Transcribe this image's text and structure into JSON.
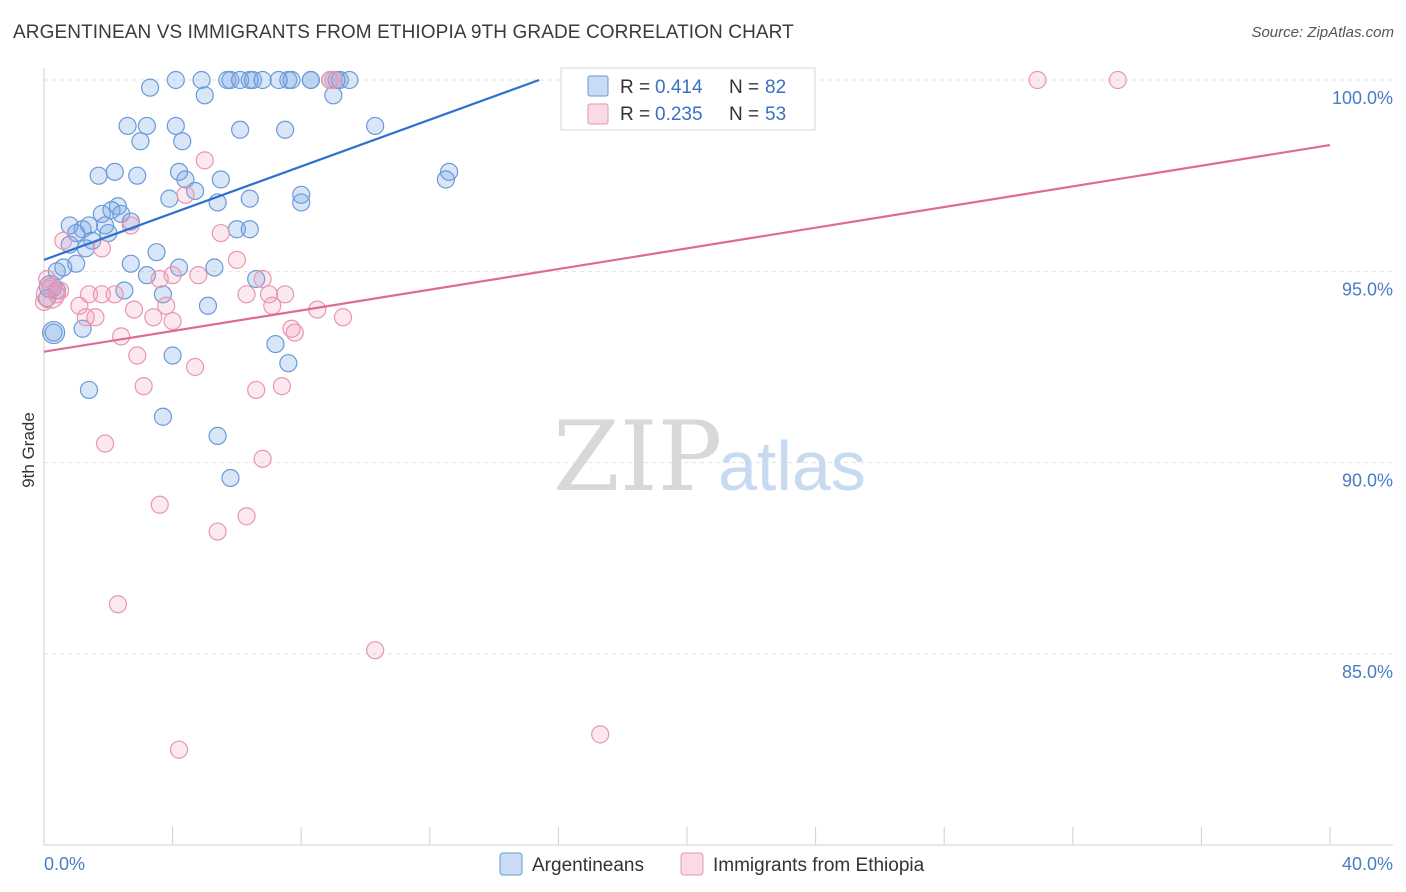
{
  "title": "ARGENTINEAN VS IMMIGRANTS FROM ETHIOPIA 9TH GRADE CORRELATION CHART",
  "source": "Source: ZipAtlas.com",
  "watermark": {
    "zip": "ZIP",
    "atlas": "atlas"
  },
  "colors": {
    "blue_fill": "rgba(120,165,230,0.28)",
    "blue_stroke": "#6a9ad8",
    "blue_line": "#2f6fcf",
    "pink_fill": "rgba(240,150,180,0.22)",
    "pink_stroke": "#e896b2",
    "pink_line": "#e06a96",
    "grid": "#e3e3e3",
    "tick": "#4a7cc4"
  },
  "legend": {
    "rows": [
      {
        "r_label": "R =",
        "r_value": "0.414",
        "n_label": "N =",
        "n_value": "82"
      },
      {
        "r_label": "R =",
        "r_value": "0.235",
        "n_label": "N =",
        "n_value": "53"
      }
    ]
  },
  "chart_data": {
    "type": "scatter",
    "title": "ARGENTINEAN VS IMMIGRANTS FROM ETHIOPIA 9TH GRADE CORRELATION CHART",
    "xlabel": "",
    "ylabel": "9th Grade",
    "xlim": [
      0,
      40
    ],
    "ylim": [
      80.5,
      100.5
    ],
    "x_tick_labels": [
      "0.0%",
      "40.0%"
    ],
    "y_ticks": [
      100,
      95,
      90,
      85
    ],
    "y_tick_labels": [
      "100.0%",
      "95.0%",
      "90.0%",
      "85.0%"
    ],
    "grid": true,
    "legend_position": "top-center",
    "series": [
      {
        "name": "Argentineans",
        "color": "blue",
        "trend": {
          "x": [
            0,
            15.4
          ],
          "y": [
            95.3,
            100.0
          ]
        },
        "points": [
          [
            3.3,
            99.8
          ],
          [
            4.9,
            100
          ],
          [
            5.7,
            100
          ],
          [
            5.8,
            100
          ],
          [
            6.1,
            100
          ],
          [
            6.4,
            100
          ],
          [
            6.5,
            100
          ],
          [
            6.8,
            100
          ],
          [
            7.6,
            100
          ],
          [
            7.7,
            100
          ],
          [
            8.3,
            100
          ],
          [
            8.9,
            100
          ],
          [
            9.2,
            100
          ],
          [
            9.5,
            100
          ],
          [
            5.0,
            99.6
          ],
          [
            9.0,
            99.6
          ],
          [
            2.6,
            98.8
          ],
          [
            3.2,
            98.8
          ],
          [
            4.1,
            98.8
          ],
          [
            6.1,
            98.7
          ],
          [
            7.5,
            98.7
          ],
          [
            10.3,
            98.8
          ],
          [
            3.0,
            98.4
          ],
          [
            4.3,
            98.4
          ],
          [
            2.2,
            97.6
          ],
          [
            4.2,
            97.6
          ],
          [
            1.7,
            97.5
          ],
          [
            2.9,
            97.5
          ],
          [
            4.4,
            97.4
          ],
          [
            5.5,
            97.4
          ],
          [
            12.6,
            97.6
          ],
          [
            12.5,
            97.4
          ],
          [
            4.7,
            97.1
          ],
          [
            8.0,
            97.0
          ],
          [
            3.9,
            96.9
          ],
          [
            5.4,
            96.8
          ],
          [
            6.4,
            96.9
          ],
          [
            8.0,
            96.8
          ],
          [
            2.3,
            96.7
          ],
          [
            2.1,
            96.6
          ],
          [
            1.8,
            96.5
          ],
          [
            2.4,
            96.5
          ],
          [
            0.8,
            96.2
          ],
          [
            1.9,
            96.2
          ],
          [
            2.7,
            96.3
          ],
          [
            1.2,
            96.1
          ],
          [
            1.4,
            96.2
          ],
          [
            6.0,
            96.1
          ],
          [
            6.4,
            96.1
          ],
          [
            2.0,
            96.0
          ],
          [
            1.0,
            96.0
          ],
          [
            1.5,
            95.8
          ],
          [
            0.8,
            95.7
          ],
          [
            1.3,
            95.6
          ],
          [
            3.5,
            95.5
          ],
          [
            1.0,
            95.2
          ],
          [
            2.7,
            95.2
          ],
          [
            0.6,
            95.1
          ],
          [
            4.2,
            95.1
          ],
          [
            5.3,
            95.1
          ],
          [
            0.4,
            95.0
          ],
          [
            3.2,
            94.9
          ],
          [
            6.6,
            94.8
          ],
          [
            0.2,
            94.6
          ],
          [
            0.4,
            94.5
          ],
          [
            2.5,
            94.5
          ],
          [
            3.7,
            94.4
          ],
          [
            0.1,
            94.3
          ],
          [
            5.1,
            94.1
          ],
          [
            0.3,
            93.4
          ],
          [
            1.2,
            93.5
          ],
          [
            7.2,
            93.1
          ],
          [
            4.0,
            92.8
          ],
          [
            7.6,
            92.6
          ],
          [
            1.4,
            91.9
          ],
          [
            3.7,
            91.2
          ],
          [
            5.4,
            90.7
          ],
          [
            5.8,
            89.6
          ],
          [
            8.3,
            100
          ],
          [
            7.3,
            100
          ],
          [
            4.1,
            100
          ],
          [
            9.1,
            100
          ]
        ]
      },
      {
        "name": "Immigrants from Ethiopia",
        "color": "pink",
        "trend": {
          "x": [
            0,
            40
          ],
          "y": [
            92.9,
            98.3
          ]
        },
        "points": [
          [
            8.9,
            100
          ],
          [
            9.0,
            100
          ],
          [
            30.9,
            100
          ],
          [
            33.4,
            100
          ],
          [
            23.6,
            99.9
          ],
          [
            5.0,
            97.9
          ],
          [
            4.4,
            97.0
          ],
          [
            5.5,
            96.0
          ],
          [
            2.7,
            96.2
          ],
          [
            0.6,
            95.8
          ],
          [
            1.8,
            95.6
          ],
          [
            6.0,
            95.3
          ],
          [
            0.1,
            94.8
          ],
          [
            0.2,
            94.6
          ],
          [
            0.5,
            94.5
          ],
          [
            0.4,
            94.4
          ],
          [
            1.4,
            94.4
          ],
          [
            1.8,
            94.4
          ],
          [
            2.2,
            94.4
          ],
          [
            3.6,
            94.8
          ],
          [
            4.0,
            94.9
          ],
          [
            4.8,
            94.9
          ],
          [
            6.3,
            94.4
          ],
          [
            6.8,
            94.8
          ],
          [
            7.0,
            94.4
          ],
          [
            7.5,
            94.4
          ],
          [
            0.0,
            94.2
          ],
          [
            1.1,
            94.1
          ],
          [
            2.8,
            94.0
          ],
          [
            3.8,
            94.1
          ],
          [
            7.1,
            94.1
          ],
          [
            8.5,
            94.0
          ],
          [
            1.3,
            93.8
          ],
          [
            1.6,
            93.8
          ],
          [
            3.4,
            93.8
          ],
          [
            4.0,
            93.7
          ],
          [
            9.3,
            93.8
          ],
          [
            7.7,
            93.5
          ],
          [
            7.8,
            93.4
          ],
          [
            2.4,
            93.3
          ],
          [
            2.9,
            92.8
          ],
          [
            4.7,
            92.5
          ],
          [
            3.1,
            92.0
          ],
          [
            7.4,
            92.0
          ],
          [
            6.6,
            91.9
          ],
          [
            1.9,
            90.5
          ],
          [
            6.8,
            90.1
          ],
          [
            3.6,
            88.9
          ],
          [
            6.3,
            88.6
          ],
          [
            5.4,
            88.2
          ],
          [
            2.3,
            86.3
          ],
          [
            10.3,
            85.1
          ],
          [
            17.3,
            82.9
          ]
        ]
      }
    ],
    "extra_points_pink": [
      [
        4.2,
        82.5
      ]
    ]
  },
  "bottom_legend": [
    {
      "label": "Argentineans"
    },
    {
      "label": "Immigrants from Ethiopia"
    }
  ]
}
